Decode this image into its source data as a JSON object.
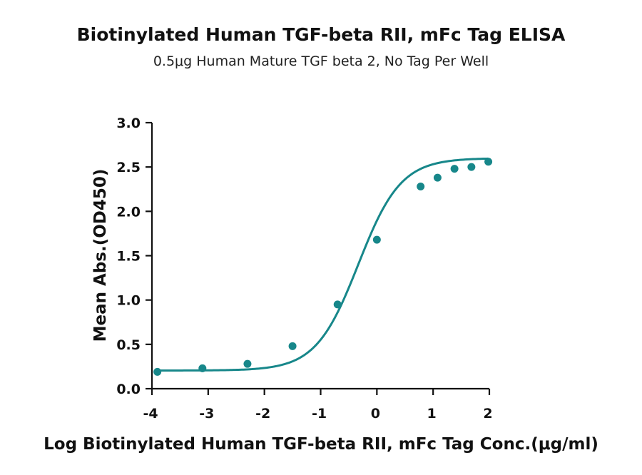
{
  "chart_data": {
    "type": "scatter",
    "title": "Biotinylated Human TGF-beta RII, mFc Tag ELISA",
    "subtitle": "0.5μg Human Mature TGF beta 2, No Tag Per Well",
    "xlabel": "Log Biotinylated Human TGF-beta RII, mFc Tag Conc.(μg/ml)",
    "ylabel": "Mean Abs.(OD450)",
    "xlim": [
      -4,
      2
    ],
    "ylim": [
      0,
      3.0
    ],
    "x_ticks": [
      -4,
      -3,
      -2,
      -1,
      0,
      1,
      2
    ],
    "y_ticks": [
      0.0,
      0.5,
      1.0,
      1.5,
      2.0,
      2.5,
      3.0
    ],
    "x_tick_labels": [
      "-4",
      "-3",
      "-2",
      "-1",
      "0",
      "1",
      "2"
    ],
    "y_tick_labels": [
      "0.0",
      "0.5",
      "1.0",
      "1.5",
      "2.0",
      "2.5",
      "3.0"
    ],
    "grid": false,
    "legend": "none",
    "series": [
      {
        "x": [
          -3.903,
          -3.102,
          -2.301,
          -1.5,
          -0.699,
          0.0,
          0.778,
          1.079,
          1.38,
          1.681,
          1.982
        ],
        "y": [
          0.19,
          0.23,
          0.28,
          0.48,
          0.95,
          1.68,
          2.28,
          2.38,
          2.48,
          2.5,
          2.56
        ],
        "color": "#17878a",
        "fit": "4PL sigmoid curve"
      }
    ]
  }
}
